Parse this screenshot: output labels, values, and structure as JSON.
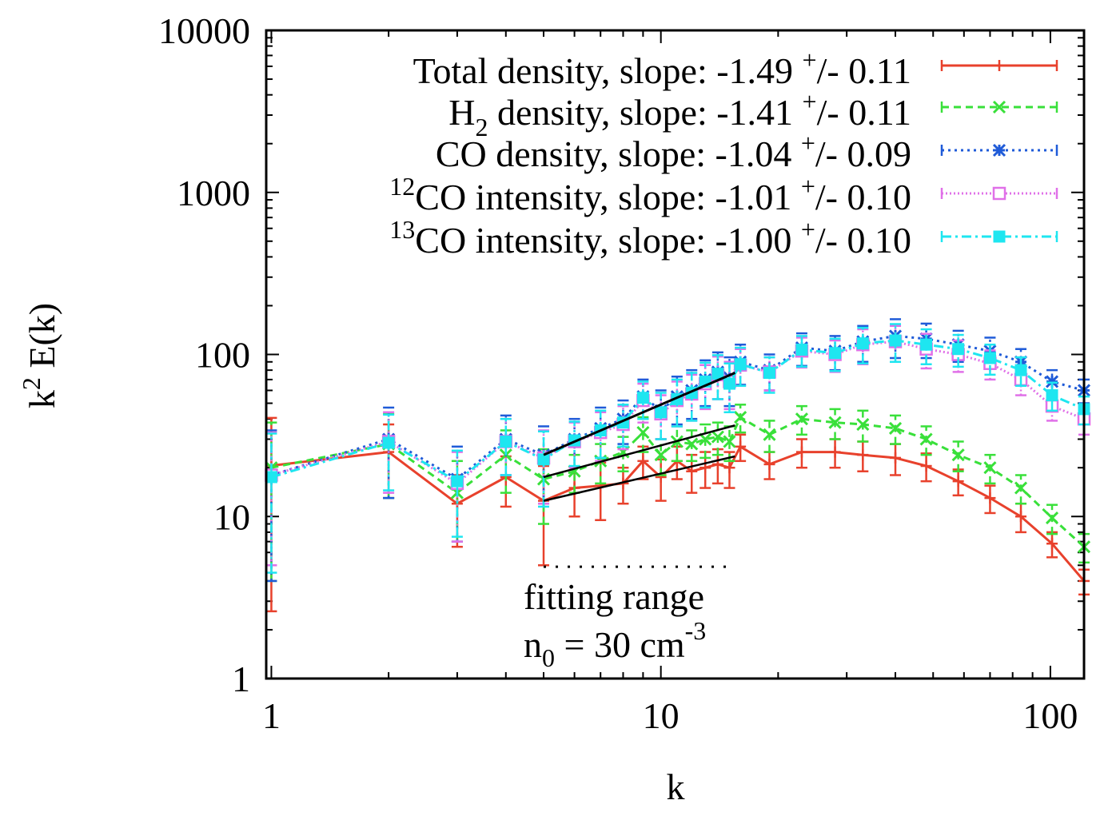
{
  "chart_data": {
    "type": "line",
    "title": "",
    "xscale": "log",
    "yscale": "log",
    "xlim": [
      0.97,
      122
    ],
    "ylim": [
      1,
      10000
    ],
    "xlabel_base": "k",
    "xlabel_parts": {
      "base": "k"
    },
    "ylabel_parts": {
      "base": "k",
      "sup": "2",
      "rest": " E(k)"
    },
    "x_ticks": [
      {
        "value": 1,
        "label": "1"
      },
      {
        "value": 10,
        "label": "10"
      },
      {
        "value": 100,
        "label": "100"
      }
    ],
    "y_ticks": [
      {
        "value": 1,
        "label": "1"
      },
      {
        "value": 10,
        "label": "10"
      },
      {
        "value": 100,
        "label": "100"
      },
      {
        "value": 1000,
        "label": "1000"
      },
      {
        "value": 10000,
        "label": "10000"
      }
    ],
    "legend_position": "top-right",
    "x": [
      1,
      2,
      3,
      4,
      5,
      6,
      7,
      8,
      9,
      10,
      11,
      12,
      13,
      14,
      15,
      16,
      19,
      23,
      28,
      33,
      40,
      48,
      58,
      70,
      84,
      101,
      122
    ],
    "series": [
      {
        "name": "Total density",
        "legend": {
          "pre_sup": "",
          "pre_sub": "",
          "text": "Total density, slope: -1.49 ",
          "pm_sup": "+",
          "tail": "/- 0.11"
        },
        "color": "#e8412c",
        "dash": "",
        "marker": "plus",
        "values": [
          20.6,
          25,
          12,
          17.5,
          12.5,
          15,
          15.5,
          16,
          22,
          17.5,
          22,
          19,
          20,
          21,
          20,
          27,
          21,
          25,
          25,
          24,
          23,
          20.5,
          16.5,
          13,
          10,
          6.8,
          4
        ],
        "err_lo": [
          18,
          12,
          5.5,
          6,
          7.5,
          5,
          6,
          4,
          5,
          5,
          5,
          5,
          5,
          5,
          5,
          5,
          4,
          5,
          5,
          5,
          5,
          4,
          3,
          2.5,
          2,
          1.2,
          0.7
        ],
        "err_hi": [
          20,
          12,
          6,
          6,
          8,
          5,
          6,
          4,
          5,
          5,
          5,
          5,
          5,
          5,
          5,
          5,
          4,
          5,
          5,
          5,
          5,
          4,
          3,
          2.5,
          2,
          1.2,
          0.7
        ]
      },
      {
        "name": "H2 density",
        "legend": {
          "pre_sup": "",
          "pre_sub": "",
          "text": "H",
          "sub": "2",
          "text2": " density, slope: -1.41 ",
          "pm_sup": "+",
          "tail": "/- 0.11"
        },
        "color": "#39e03a",
        "dash": "9,6",
        "marker": "x",
        "values": [
          20,
          28,
          14,
          24,
          17,
          19,
          22,
          25,
          33,
          24,
          29,
          28,
          30,
          31,
          29,
          41,
          32,
          40,
          38,
          37,
          35,
          30,
          24,
          20,
          15,
          9.8,
          6.5
        ],
        "err_lo": [
          16,
          15,
          7,
          10,
          8,
          5,
          6,
          6,
          8,
          6,
          7,
          6,
          7,
          7,
          7,
          8,
          7,
          8,
          8,
          8,
          7,
          6,
          5,
          4,
          3,
          2,
          1.3
        ],
        "err_hi": [
          18,
          15,
          8,
          10,
          9,
          5,
          6,
          6,
          8,
          6,
          7,
          6,
          7,
          7,
          7,
          8,
          7,
          8,
          8,
          8,
          7,
          6,
          5,
          4,
          3,
          2,
          1.3
        ]
      },
      {
        "name": "CO density",
        "legend": {
          "pre_sup": "",
          "pre_sub": "",
          "text": "CO density, slope: -1.04 ",
          "pm_sup": "+",
          "tail": "/- 0.09"
        },
        "color": "#1f5bd8",
        "dash": "3,5",
        "marker": "star",
        "values": [
          18,
          30,
          17,
          30,
          24,
          30,
          35,
          40,
          55,
          45,
          55,
          60,
          70,
          78,
          72,
          90,
          80,
          110,
          105,
          120,
          130,
          125,
          115,
          105,
          90,
          68,
          60
        ],
        "err_lo": [
          14,
          17,
          10,
          12,
          12,
          10,
          12,
          12,
          15,
          15,
          18,
          20,
          22,
          25,
          24,
          25,
          20,
          25,
          25,
          30,
          35,
          30,
          25,
          22,
          18,
          12,
          10
        ],
        "err_hi": [
          16,
          17,
          10,
          12,
          12,
          10,
          12,
          12,
          15,
          15,
          18,
          20,
          22,
          25,
          24,
          25,
          20,
          25,
          25,
          30,
          35,
          30,
          25,
          22,
          18,
          12,
          10
        ]
      },
      {
        "name": "12CO intensity",
        "legend": {
          "pre_sup": "12",
          "pre_sub": "",
          "text": "CO intensity, slope: -1.01 ",
          "pm_sup": "+",
          "tail": "/- 0.10"
        },
        "color": "#e070e8",
        "dash": "2,3",
        "marker": "square",
        "values": [
          18,
          29,
          16,
          29,
          23,
          29,
          33,
          37,
          52,
          43,
          52,
          57,
          66,
          75,
          68,
          86,
          78,
          105,
          100,
          115,
          120,
          108,
          100,
          88,
          70,
          48,
          40
        ],
        "err_lo": [
          13,
          15,
          9,
          11,
          11,
          9,
          11,
          11,
          14,
          13,
          16,
          18,
          20,
          22,
          22,
          22,
          18,
          22,
          22,
          28,
          30,
          26,
          22,
          18,
          14,
          9,
          8
        ],
        "err_hi": [
          15,
          15,
          9,
          11,
          11,
          9,
          11,
          11,
          14,
          13,
          16,
          18,
          20,
          22,
          22,
          22,
          18,
          22,
          22,
          28,
          30,
          26,
          22,
          18,
          14,
          9,
          8
        ]
      },
      {
        "name": "13CO intensity",
        "legend": {
          "pre_sup": "13",
          "pre_sub": "",
          "text": "CO intensity, slope: -1.00 ",
          "pm_sup": "+",
          "tail": "/- 0.10"
        },
        "color": "#1ee6f0",
        "dash": "12,5,3,5",
        "marker": "filled-square",
        "values": [
          17.5,
          28.5,
          16.5,
          29,
          22.5,
          29.5,
          34,
          38,
          54,
          44,
          53,
          58,
          68,
          76,
          66,
          87,
          77,
          107,
          102,
          117,
          122,
          115,
          108,
          95,
          80,
          56,
          46
        ],
        "err_lo": [
          13,
          14,
          9,
          11,
          11,
          9,
          11,
          11,
          14,
          14,
          17,
          19,
          21,
          23,
          22,
          23,
          19,
          23,
          23,
          29,
          32,
          28,
          24,
          20,
          16,
          11,
          9
        ],
        "err_hi": [
          15,
          14,
          9,
          11,
          11,
          9,
          11,
          11,
          14,
          14,
          17,
          19,
          21,
          23,
          22,
          23,
          19,
          23,
          23,
          29,
          32,
          28,
          24,
          20,
          16,
          11,
          9
        ]
      }
    ],
    "fits": [
      {
        "name": "fit-co",
        "x": [
          5,
          15.5
        ],
        "y": [
          24,
          77
        ],
        "width": 3
      },
      {
        "name": "fit-h2",
        "x": [
          5,
          15.5
        ],
        "y": [
          17.5,
          36.5
        ],
        "width": 2.5
      },
      {
        "name": "fit-total",
        "x": [
          5,
          15.5
        ],
        "y": [
          12.5,
          23.5
        ],
        "width": 2.5
      }
    ],
    "fitting_range": {
      "x": [
        5,
        15.5
      ],
      "y": 4.9
    },
    "annotations": {
      "fitting_label": "fitting range",
      "density_base": "n",
      "density_sub": "0",
      "density_mid": " = 30 cm",
      "density_sup": "-3"
    }
  }
}
